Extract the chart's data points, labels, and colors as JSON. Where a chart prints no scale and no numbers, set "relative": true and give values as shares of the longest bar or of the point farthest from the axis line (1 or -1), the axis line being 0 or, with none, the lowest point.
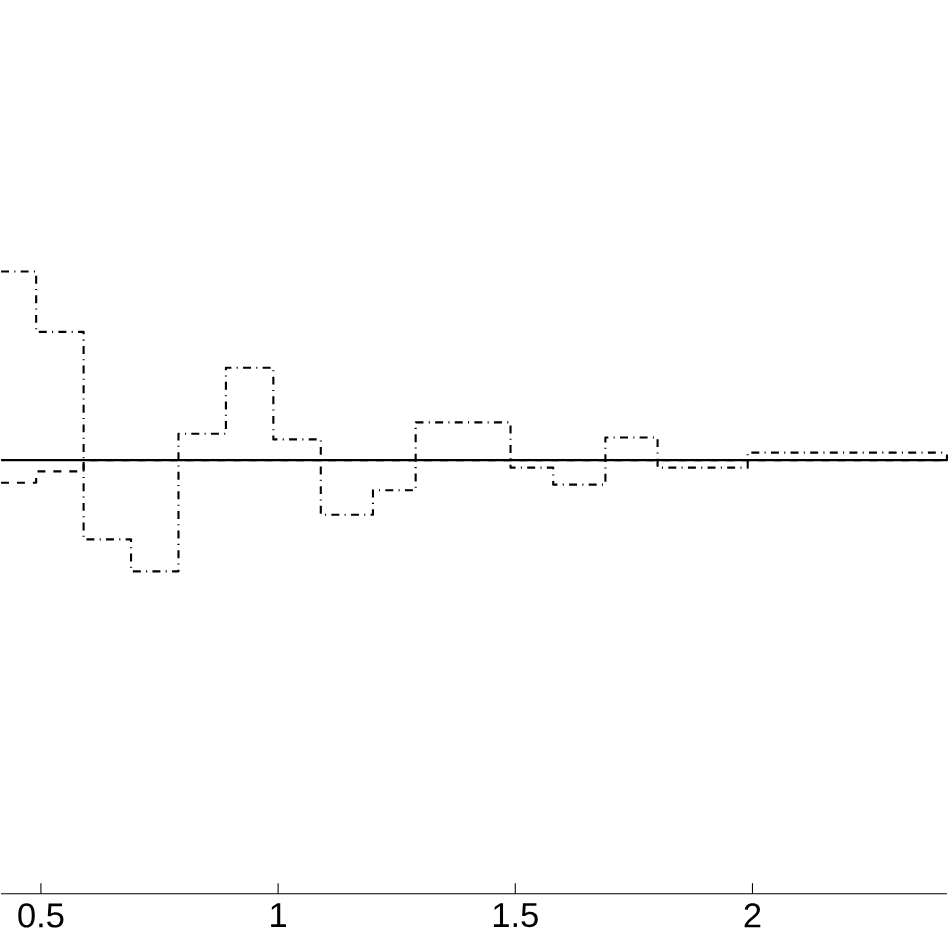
{
  "chart_data": {
    "type": "step",
    "relative": true,
    "xlim": [
      0.416,
      2.41
    ],
    "xticks": [
      0.5,
      1,
      1.5,
      2
    ],
    "tick_labels": "x",
    "grid": false,
    "series": [
      {
        "color": "#000000",
        "line_style": "dashdot",
        "x": [
          0.416,
          0.49,
          0.59,
          0.69,
          0.79,
          0.89,
          0.99,
          1.09,
          1.2,
          1.29,
          1.49,
          1.58,
          1.69,
          1.8,
          1.99,
          2.19,
          2.41
        ],
        "values": [
          1.0,
          0.68,
          -0.42,
          -0.59,
          0.14,
          0.49,
          0.11,
          -0.29,
          -0.16,
          0.2,
          -0.04,
          -0.13,
          0.12,
          -0.04,
          0.04,
          0.04,
          0.04
        ]
      },
      {
        "color": "#000000",
        "line_style": "dashed",
        "x": [
          0.416,
          0.49,
          0.59,
          2.41
        ],
        "values": [
          -0.12,
          -0.06,
          0,
          0
        ]
      },
      {
        "color": "#000000",
        "line_style": "solid",
        "x": [
          0.416,
          2.41
        ],
        "values": [
          0,
          0.03
        ]
      }
    ]
  }
}
